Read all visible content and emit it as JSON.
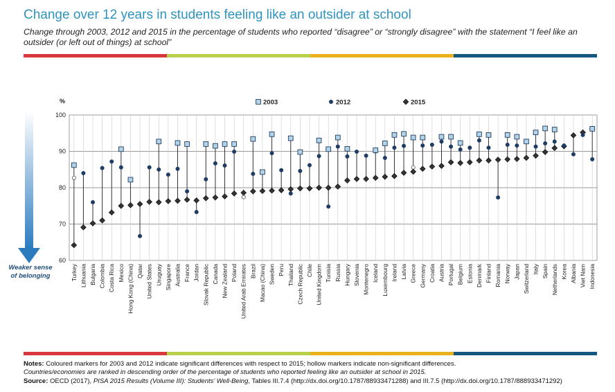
{
  "title": "Change over 12 years in students feeling like an outsider at school",
  "subtitle": "Change through 2003, 2012 and 2015 in the percentage of students who reported “disagree” or “strongly disagree” with the statement “I feel like an outsider (or left out of things) at school”",
  "colors": {
    "title": "#2f93bf",
    "bar_segments": [
      "#d8373c",
      "#b9d14a",
      "#e9b21c",
      "#15587f"
    ],
    "marker_2003": "#b3d4e6",
    "marker_2012": "#1f3c64",
    "marker_2015": "#333333",
    "arrow": "#2b7bbf"
  },
  "arrow_label": "Weaker sense of belonging",
  "notes": {
    "notes_label": "Notes:",
    "notes_text": " Coloured markers for 2003 and 2012 indicate significant differences with respect to 2015; hollow markers indicate non-significant differences.",
    "ranking_text": "Countries/economies are ranked in descending order of the percentage of students who reported feeling like an outsider at school in 2015.",
    "source_label": "Source:",
    "source_prefix": " OECD (2017), ",
    "source_italic": "PISA 2015 Results (Volume III): Students’ Well-Being",
    "source_suffix": ", Tables III.7.4 (http://dx.doi.org/10.1787/88933471288) and III.7.5 (http://dx.doi.org/10.1787/888933471292)"
  },
  "chart_data": {
    "type": "scatter",
    "title": "",
    "xlabel": "",
    "ylabel": "%",
    "ylim": [
      60,
      100
    ],
    "yticks": [
      60,
      70,
      80,
      90,
      100
    ],
    "grid": true,
    "legend_placement": "top",
    "categories": [
      "Turkey",
      "Lithuania",
      "Bulgaria",
      "Colombia",
      "Costa Rica",
      "Mexico",
      "Hong Kong (China)",
      "Qatar",
      "United States",
      "Uruguay",
      "Singapore",
      "Australia",
      "France",
      "Jordan",
      "Slovak Republic",
      "Canada",
      "New Zealand",
      "Poland",
      "United Arab Emirates",
      "Brazil",
      "Macao (China)",
      "Sweden",
      "Peru",
      "Thailand",
      "Czech Republic",
      "Chile",
      "United Kingdom",
      "Tunisia",
      "Russia",
      "Hungary",
      "Slovenia",
      "Montenegro",
      "Iceland",
      "Luxembourg",
      "Ireland",
      "Latvia",
      "Greece",
      "Germany",
      "Croatia",
      "Austria",
      "Portugal",
      "Belgium",
      "Estonia",
      "Denmark",
      "Finland",
      "Romania",
      "Norway",
      "Japan",
      "Switzerland",
      "Italy",
      "Spain",
      "Netherlands",
      "Korea",
      "Albania",
      "Viet Nam",
      "Indonesia"
    ],
    "series": [
      {
        "name": "2003",
        "marker": "square",
        "values": [
          86.2,
          null,
          null,
          null,
          null,
          90.6,
          82.2,
          null,
          null,
          92.7,
          null,
          92.3,
          92.0,
          null,
          92.0,
          91.5,
          92.0,
          92.0,
          null,
          93.4,
          84.3,
          94.7,
          null,
          93.6,
          89.8,
          null,
          93.0,
          90.6,
          93.8,
          90.7,
          null,
          null,
          90.3,
          92.2,
          94.5,
          94.8,
          93.8,
          93.8,
          null,
          94.0,
          94.0,
          92.3,
          null,
          94.7,
          94.5,
          null,
          94.5,
          94.0,
          92.7,
          95.2,
          96.3,
          96.0,
          null,
          null,
          null,
          96.2
        ],
        "significant": [
          true,
          null,
          null,
          null,
          null,
          true,
          true,
          null,
          null,
          true,
          null,
          true,
          true,
          null,
          true,
          true,
          true,
          true,
          null,
          true,
          true,
          true,
          null,
          true,
          true,
          null,
          true,
          true,
          true,
          true,
          null,
          null,
          true,
          true,
          true,
          true,
          true,
          true,
          null,
          true,
          true,
          true,
          null,
          true,
          true,
          null,
          true,
          true,
          true,
          true,
          true,
          true,
          null,
          null,
          null,
          true
        ]
      },
      {
        "name": "2012",
        "marker": "circle",
        "values": [
          82.7,
          84.0,
          76.0,
          85.4,
          87.2,
          85.6,
          82.1,
          66.7,
          85.6,
          85.0,
          83.6,
          85.2,
          79.0,
          73.3,
          82.3,
          86.7,
          86.1,
          89.9,
          77.4,
          83.8,
          84.3,
          89.5,
          84.8,
          78.4,
          84.6,
          86.2,
          88.7,
          74.8,
          91.3,
          88.6,
          89.9,
          88.8,
          90.0,
          88.2,
          91.0,
          91.5,
          85.6,
          91.6,
          91.8,
          92.7,
          91.3,
          90.5,
          91.0,
          93.0,
          91.0,
          77.3,
          91.8,
          91.6,
          92.7,
          91.3,
          92.2,
          92.7,
          91.6,
          89.2,
          94.5,
          87.8
        ],
        "significant": [
          false,
          true,
          true,
          true,
          true,
          true,
          true,
          true,
          true,
          true,
          true,
          true,
          true,
          true,
          true,
          true,
          true,
          true,
          false,
          true,
          true,
          true,
          true,
          true,
          true,
          true,
          true,
          true,
          true,
          true,
          true,
          true,
          true,
          true,
          true,
          true,
          false,
          true,
          true,
          true,
          true,
          true,
          true,
          true,
          true,
          true,
          true,
          true,
          true,
          true,
          true,
          true,
          true,
          true,
          true,
          true
        ]
      },
      {
        "name": "2015",
        "marker": "diamond",
        "values": [
          64.2,
          69.1,
          70.2,
          71.0,
          73.2,
          75.0,
          75.2,
          75.5,
          76.1,
          76.0,
          76.3,
          76.4,
          76.7,
          76.5,
          77.1,
          77.3,
          77.6,
          78.4,
          78.6,
          79.0,
          79.1,
          79.2,
          79.3,
          79.6,
          79.8,
          79.8,
          80.0,
          80.0,
          80.3,
          82.0,
          82.4,
          82.4,
          82.7,
          83.0,
          83.2,
          84.1,
          84.4,
          85.2,
          85.8,
          86.0,
          87.0,
          86.8,
          87.0,
          87.5,
          87.5,
          87.7,
          87.8,
          87.9,
          88.2,
          88.8,
          89.8,
          90.9,
          91.4,
          94.4,
          95.2,
          96.2
        ],
        "significant": [
          true,
          true,
          true,
          true,
          true,
          true,
          true,
          true,
          true,
          true,
          true,
          true,
          true,
          true,
          true,
          true,
          true,
          true,
          true,
          true,
          true,
          true,
          true,
          true,
          true,
          true,
          true,
          true,
          true,
          true,
          true,
          true,
          true,
          true,
          true,
          true,
          true,
          true,
          true,
          true,
          true,
          true,
          true,
          true,
          true,
          true,
          true,
          true,
          true,
          true,
          true,
          true,
          true,
          true,
          true,
          true
        ]
      }
    ]
  }
}
